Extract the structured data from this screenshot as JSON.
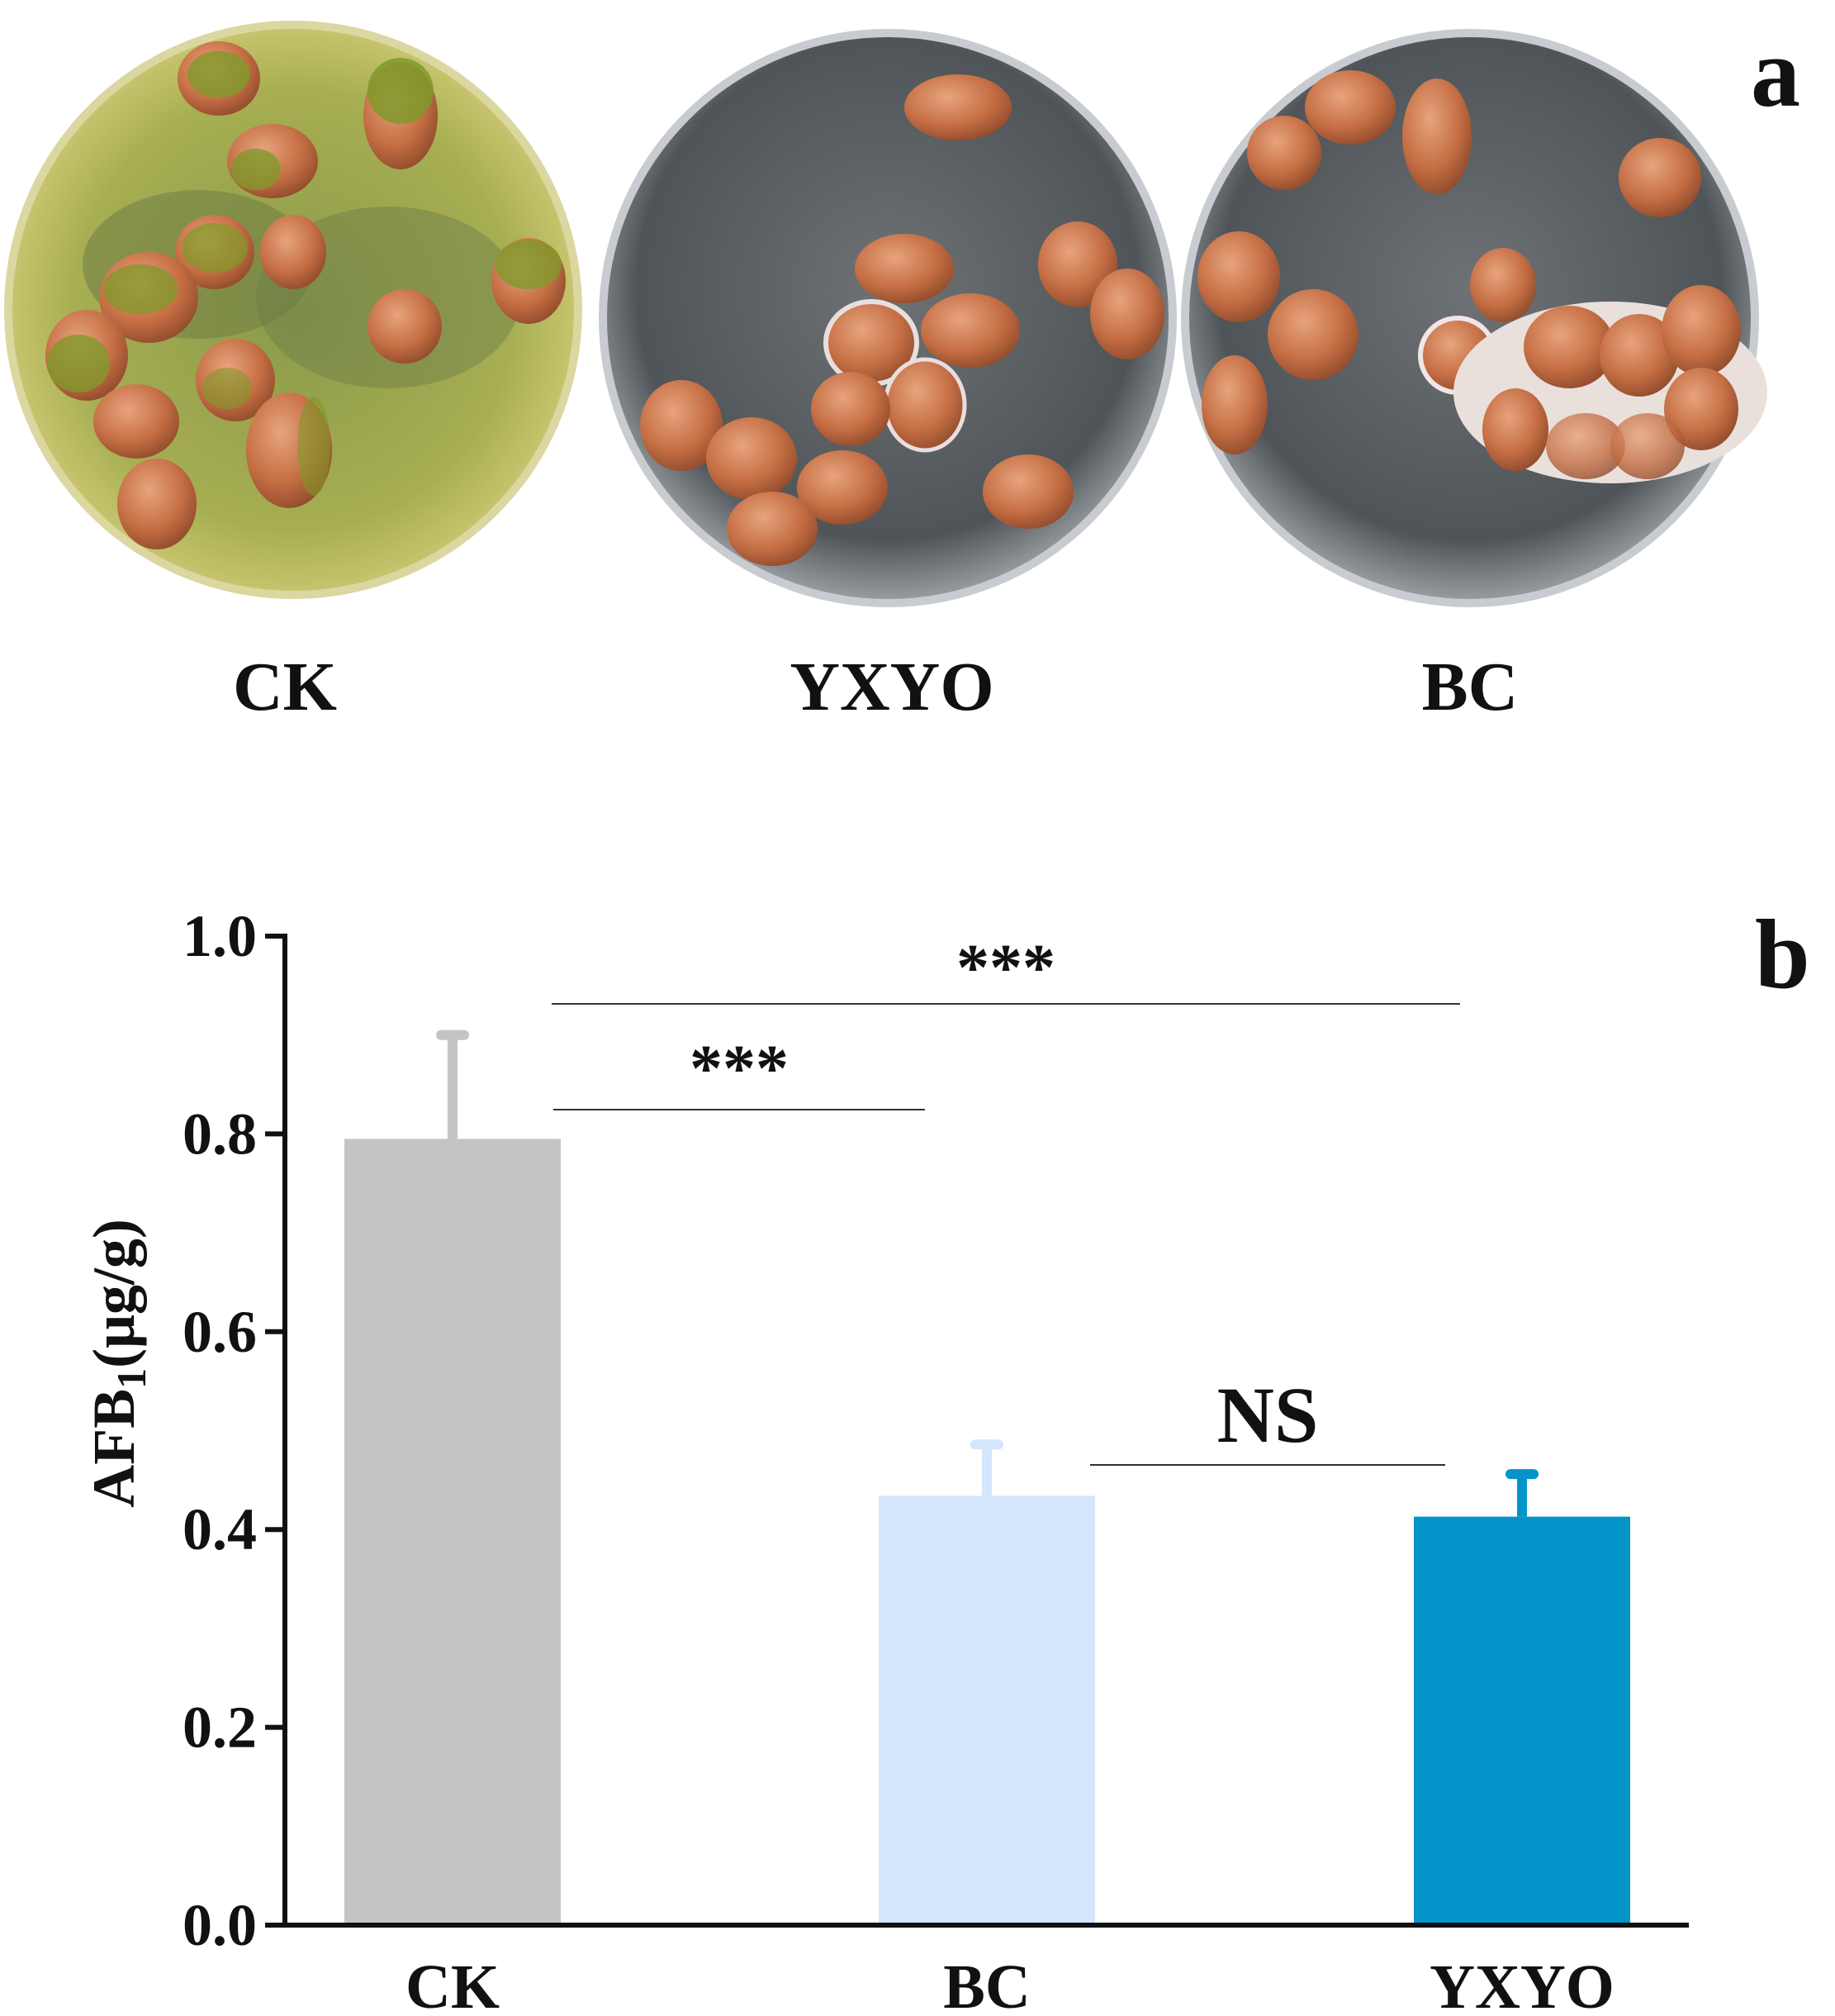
{
  "panel_a": {
    "letter": "a",
    "dishes": [
      {
        "label": "CK",
        "treatment": "heavy mold"
      },
      {
        "label": "YXYO",
        "treatment": "clean"
      },
      {
        "label": "BC",
        "treatment": "white mold"
      }
    ]
  },
  "panel_b": {
    "letter": "b"
  },
  "colors": {
    "ck": "#c4c4c4",
    "bc": "#d4e6fc",
    "yxyo": "#0394c9",
    "axis": "#111111",
    "mold_green": "#7f9a2a",
    "peanut": "#c8744d"
  },
  "chart_data": {
    "type": "bar",
    "categories": [
      "CK",
      "BC",
      "YXYO"
    ],
    "values": [
      0.795,
      0.434,
      0.413
    ],
    "errors": [
      0.105,
      0.052,
      0.043
    ],
    "ylabel": "AFB",
    "ylabel_sub": "1",
    "ylabel_unit": "(μg/g)",
    "ylim": [
      0,
      1.0
    ],
    "yticks": [
      "0.0",
      "0.2",
      "0.4",
      "0.6",
      "0.8",
      "1.0"
    ],
    "significance": [
      {
        "from": "CK",
        "to": "BC",
        "label": "***"
      },
      {
        "from": "CK",
        "to": "YXYO",
        "label": "***"
      },
      {
        "from": "BC",
        "to": "YXYO",
        "label": "NS"
      }
    ]
  }
}
